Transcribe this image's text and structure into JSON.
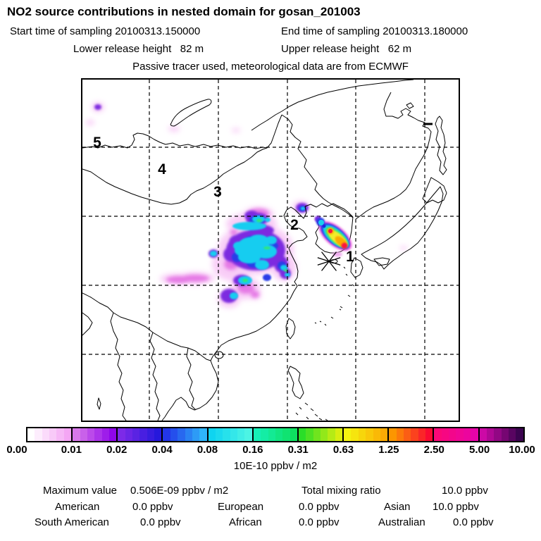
{
  "header": {
    "title": "NO2 source contributions in nested domain for gosan_201003",
    "start_time": "Start time of sampling 20100313.150000",
    "end_time": "End time of sampling 20100313.180000",
    "lower_release": "Lower release height   82 m",
    "upper_release": "Upper release height   62 m",
    "tracer_note": "Passive tracer used, meteorological data are from ECMWF"
  },
  "map": {
    "trajectory_labels": [
      "5",
      "4",
      "3",
      "2",
      "1"
    ],
    "receptor_marker": "star-icon"
  },
  "legend": {
    "ticks": [
      "0.00",
      "0.01",
      "0.02",
      "0.04",
      "0.08",
      "0.16",
      "0.31",
      "0.63",
      "1.25",
      "2.50",
      "5.00",
      "10.00"
    ],
    "unit": "10E-10 ppbv / m2",
    "segments": [
      {
        "from": "#ffffff",
        "to": "#f4a6f4"
      },
      {
        "from": "#d878ea",
        "to": "#8f06ea"
      },
      {
        "from": "#7c2ae8",
        "to": "#2618dc"
      },
      {
        "from": "#2336e8",
        "to": "#2fb4fa"
      },
      {
        "from": "#0fd4f0",
        "to": "#4cf4e4"
      },
      {
        "from": "#16f0b6",
        "to": "#0ee060"
      },
      {
        "from": "#2ade28",
        "to": "#d8ee10"
      },
      {
        "from": "#f4f410",
        "to": "#fcaa04"
      },
      {
        "from": "#fc9600",
        "to": "#fa0a32"
      },
      {
        "from": "#fb0878",
        "to": "#e804a8"
      },
      {
        "from": "#cc09a6",
        "to": "#3c0450"
      }
    ]
  },
  "stats": {
    "max_label": "Maximum value",
    "max_value": "0.506E-09 ppbv / m2",
    "total_label": "Total mixing ratio",
    "total_value": "10.0 ppbv",
    "rows": [
      [
        {
          "name": "American",
          "value": "0.0 ppbv"
        },
        {
          "name": "European",
          "value": "0.0 ppbv"
        },
        {
          "name": "Asian",
          "value": "10.0 ppbv"
        }
      ],
      [
        {
          "name": "South American",
          "value": "0.0 ppbv"
        },
        {
          "name": "African",
          "value": "0.0 ppbv"
        },
        {
          "name": "Australian",
          "value": "0.0 ppbv"
        }
      ]
    ]
  },
  "chart_data": {
    "type": "heatmap",
    "title": "NO2 source contributions in nested domain for gosan_201003",
    "region": "East Asia nested model domain (map with dashed lat/lon grid)",
    "colorbar_levels": [
      0.0,
      0.01,
      0.02,
      0.04,
      0.08,
      0.16,
      0.31,
      0.63,
      1.25,
      2.5,
      5.0,
      10.0
    ],
    "colorbar_unit": "10E-10 ppbv / m2",
    "receptor_site": "gosan, marked with star symbol near southern Korea",
    "trajectory_hour_markers": [
      "5",
      "4",
      "3",
      "2",
      "1"
    ],
    "maximum_value": "0.506E-09 ppbv / m2",
    "total_mixing_ratio": "10.0 ppbv",
    "regional_contributions": {
      "American": "0.0 ppbv",
      "European": "0.0 ppbv",
      "Asian": "10.0 ppbv",
      "South American": "0.0 ppbv",
      "African": "0.0 ppbv",
      "Australian": "0.0 ppbv"
    },
    "plume_description": "Strong contribution (yellow/orange/red) elongated over southern Korean peninsula at receptor; moderate cyan/blue/purple cluster over eastern China; scattered weak pink/purple patches over Siberia and central China"
  }
}
